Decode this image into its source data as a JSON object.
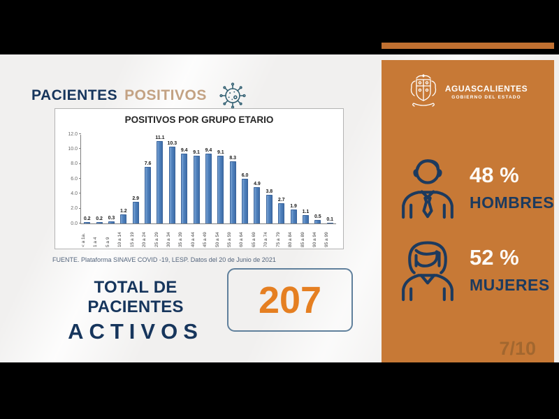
{
  "header": {
    "title_primary": "PACIENTES",
    "title_secondary": "POSITIVOS"
  },
  "logo": {
    "name": "AGUASCALIENTES",
    "subtitle": "GOBIERNO DEL ESTADO"
  },
  "chart_data": {
    "type": "bar",
    "title": "POSITIVOS POR GRUPO ETARIO",
    "categories": [
      "< a 1a.",
      "1 a 4",
      "5 a 9",
      "10 a 14",
      "15 a 19",
      "20 a 24",
      "25 a 29",
      "30 a 34",
      "35 a 39",
      "40 a 44",
      "45 a 49",
      "50 a 54",
      "55 a 59",
      "60 a 64",
      "65 a 69",
      "70 a 74",
      "75 a 79",
      "80 a 84",
      "85 a 89",
      "90 a 94",
      "95 a 99"
    ],
    "values": [
      0.2,
      0.2,
      0.3,
      1.2,
      2.9,
      7.6,
      11.1,
      10.3,
      9.4,
      9.1,
      9.4,
      9.1,
      8.3,
      6.0,
      4.9,
      3.8,
      2.7,
      1.9,
      1.1,
      0.5,
      0.1
    ],
    "xlabel": "",
    "ylabel": "",
    "ylim": [
      0,
      12
    ],
    "yticks": [
      "0.0",
      "2.0",
      "4.0",
      "6.0",
      "8.0",
      "10.0",
      "12.0"
    ],
    "ytick_step": 2,
    "grid": false,
    "legend": "none",
    "bar_color": "#4f81bd"
  },
  "source": "FUENTE. Plataforma SINAVE COVID -19, LESP. Datos del 20 de Junio de 2021",
  "total": {
    "label_line1": "TOTAL DE PACIENTES",
    "label_line2": "ACTIVOS",
    "value": "207"
  },
  "stats": [
    {
      "percent": "48 %",
      "label": "HOMBRES",
      "icon": "man-icon"
    },
    {
      "percent": "52 %",
      "label": "MUJERES",
      "icon": "woman-icon"
    }
  ],
  "page_indicator": "7/10",
  "colors": {
    "navy": "#16355c",
    "tan": "#c3a283",
    "sidebar_orange": "#c77936",
    "accent_orange": "#e57f21",
    "bar_blue": "#4f81bd",
    "letterbox": "#000000"
  }
}
